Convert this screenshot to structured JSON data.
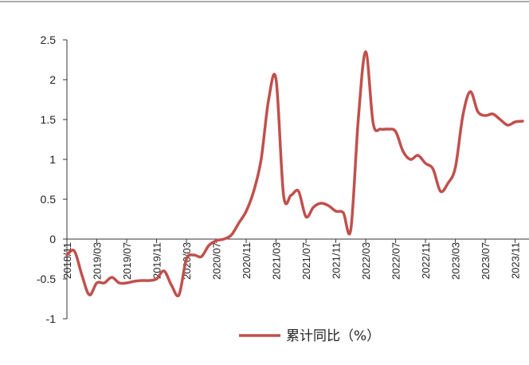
{
  "chart_data": {
    "type": "line",
    "title": "",
    "xlabel": "",
    "ylabel": "",
    "ylim": [
      -1,
      2.5
    ],
    "yticks": [
      "2.5",
      "2",
      "1.5",
      "1",
      "0.5",
      "0",
      "-0.5",
      "-1"
    ],
    "xticks": [
      "2018/11",
      "2019/03",
      "2019/07",
      "2019/11",
      "2020/03",
      "2020/07",
      "2020/11",
      "2021/03",
      "2021/07",
      "2021/11",
      "2022/03",
      "2022/07",
      "2022/11",
      "2023/03",
      "2023/07",
      "2023/11"
    ],
    "legend_position": "bottom",
    "grid": false,
    "series": [
      {
        "name": "累计同比（%）",
        "color": "#c0504d",
        "x": [
          "2018/11",
          "2018/12",
          "2019/01",
          "2019/02",
          "2019/03",
          "2019/04",
          "2019/05",
          "2019/06",
          "2019/07",
          "2019/08",
          "2019/09",
          "2019/10",
          "2019/11",
          "2019/12",
          "2020/01",
          "2020/02",
          "2020/03",
          "2020/04",
          "2020/05",
          "2020/06",
          "2020/07",
          "2020/08",
          "2020/09",
          "2020/10",
          "2020/11",
          "2020/12",
          "2021/01",
          "2021/02",
          "2021/03",
          "2021/04",
          "2021/05",
          "2021/06",
          "2021/07",
          "2021/08",
          "2021/09",
          "2021/10",
          "2021/11",
          "2021/12",
          "2022/01",
          "2022/02",
          "2022/03",
          "2022/04",
          "2022/05",
          "2022/06",
          "2022/07",
          "2022/08",
          "2022/09",
          "2022/10",
          "2022/11",
          "2022/12",
          "2023/01",
          "2023/02",
          "2023/03",
          "2023/04",
          "2023/05",
          "2023/06",
          "2023/07",
          "2023/08",
          "2023/09",
          "2023/10",
          "2023/11",
          "2023/12"
        ],
        "values": [
          -0.2,
          -0.15,
          -0.45,
          -0.7,
          -0.55,
          -0.55,
          -0.48,
          -0.55,
          -0.55,
          -0.53,
          -0.52,
          -0.52,
          -0.5,
          -0.4,
          -0.58,
          -0.7,
          -0.25,
          -0.2,
          -0.22,
          -0.08,
          -0.02,
          0.0,
          0.05,
          0.2,
          0.35,
          0.6,
          1.0,
          1.75,
          2.0,
          0.55,
          0.55,
          0.6,
          0.28,
          0.4,
          0.45,
          0.42,
          0.35,
          0.33,
          0.12,
          1.5,
          2.35,
          1.45,
          1.38,
          1.38,
          1.35,
          1.1,
          1.0,
          1.05,
          0.95,
          0.88,
          0.6,
          0.7,
          0.9,
          1.55,
          1.85,
          1.6,
          1.55,
          1.57,
          1.5,
          1.43,
          1.47,
          1.48
        ]
      }
    ]
  }
}
